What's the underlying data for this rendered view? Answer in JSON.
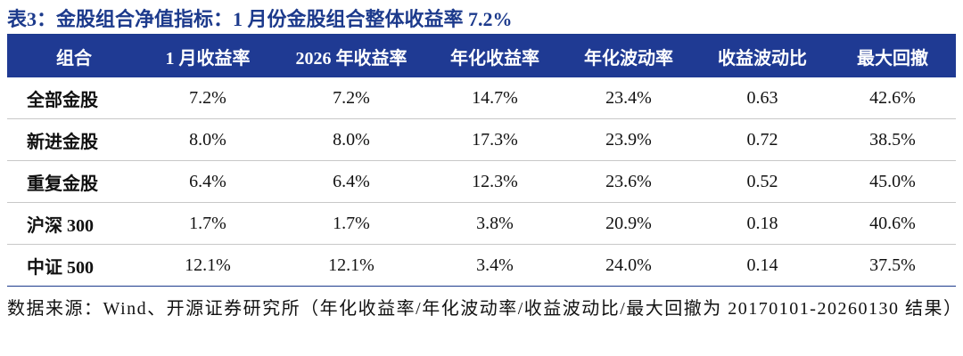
{
  "title": "表3：金股组合净值指标：1 月份金股组合整体收益率 7.2%",
  "table": {
    "header": [
      "组合",
      "1 月收益率",
      "2026 年收益率",
      "年化收益率",
      "年化波动率",
      "收益波动比",
      "最大回撤"
    ],
    "rows": [
      [
        "全部金股",
        "7.2%",
        "7.2%",
        "14.7%",
        "23.4%",
        "0.63",
        "42.6%"
      ],
      [
        "新进金股",
        "8.0%",
        "8.0%",
        "17.3%",
        "23.9%",
        "0.72",
        "38.5%"
      ],
      [
        "重复金股",
        "6.4%",
        "6.4%",
        "12.3%",
        "23.6%",
        "0.52",
        "45.0%"
      ],
      [
        "沪深 300",
        "1.7%",
        "1.7%",
        "3.8%",
        "20.9%",
        "0.18",
        "40.6%"
      ],
      [
        "中证 500",
        "12.1%",
        "12.1%",
        "3.4%",
        "24.0%",
        "0.14",
        "37.5%"
      ]
    ]
  },
  "note": "数据来源：Wind、开源证券研究所（年化收益率/年化波动率/收益波动比/最大回撤为 20170101-20260130 结果）"
}
